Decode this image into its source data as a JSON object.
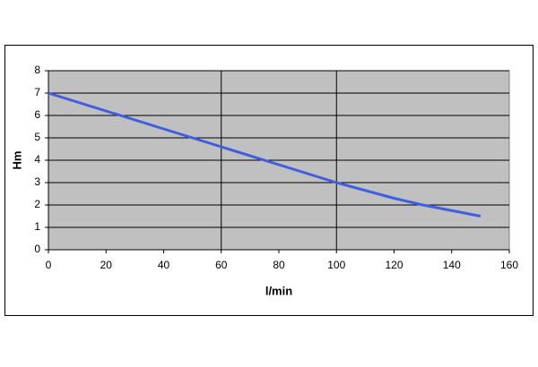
{
  "chart_data": {
    "type": "line",
    "x_label": "l/min",
    "y_label": "Hm",
    "x": [
      0,
      20,
      40,
      60,
      80,
      100,
      120,
      130,
      140,
      150
    ],
    "series": [
      {
        "color": "#3f5fe0",
        "values": [
          7,
          6.2,
          5.4,
          4.6,
          3.8,
          3.0,
          2.3,
          2.0,
          1.75,
          1.5
        ]
      }
    ],
    "xlim": [
      0,
      160
    ],
    "xticks": [
      0,
      20,
      40,
      60,
      80,
      100,
      120,
      140,
      160
    ],
    "ylim": [
      0,
      8
    ],
    "yticks": [
      0,
      1,
      2,
      3,
      4,
      5,
      6,
      7,
      8
    ],
    "grid": true,
    "x_grid_lines": [
      60,
      100
    ],
    "plot_background": "#c0c0c0"
  }
}
